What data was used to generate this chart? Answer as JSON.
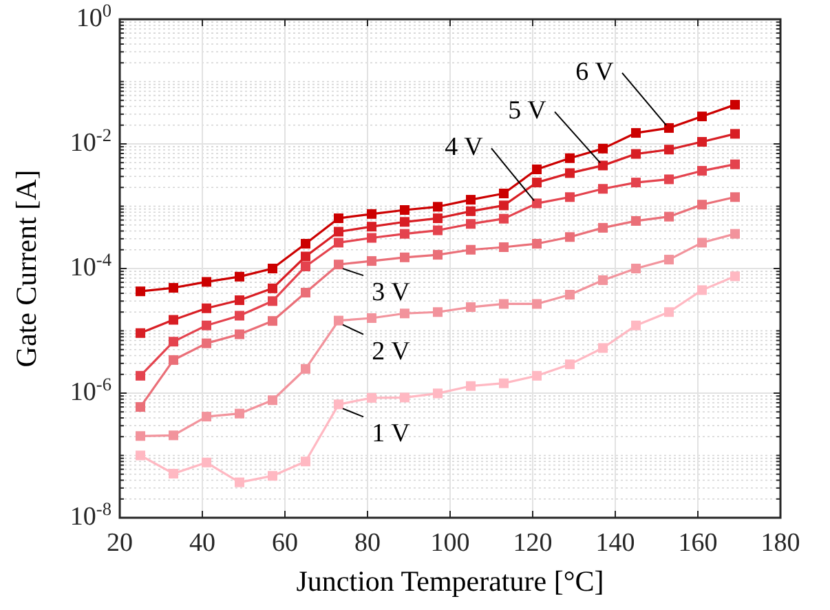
{
  "chart_data": {
    "type": "line",
    "xlabel": "Junction Temperature [°C]",
    "ylabel": "Gate Current [A]",
    "x": [
      25,
      33,
      41,
      49,
      57,
      65,
      73,
      81,
      89,
      97,
      105,
      113,
      121,
      129,
      137,
      145,
      153,
      161,
      169
    ],
    "xlim": [
      20,
      180
    ],
    "xticks": [
      20,
      40,
      60,
      80,
      100,
      120,
      140,
      160,
      180
    ],
    "ylim": [
      1e-08,
      1
    ],
    "log": true,
    "yticks": [
      {
        "value": 1e-08,
        "label": "10$^{-8}$"
      },
      {
        "value": 1e-06,
        "label": "10$^{-6}$"
      },
      {
        "value": 0.0001,
        "label": "10$^{-4}$"
      },
      {
        "value": 0.01,
        "label": "10$^{-2}$"
      },
      {
        "value": 1,
        "label": "10$^{0}$"
      }
    ],
    "grid": true,
    "legend": false,
    "marker": "square",
    "line_style": "solid",
    "series": [
      {
        "color": "#cc0000",
        "values": [
          4.3e-05,
          4.9e-05,
          6.1e-05,
          7.4e-05,
          0.0001,
          0.00025,
          0.00064,
          0.00075,
          0.00087,
          0.00098,
          0.00127,
          0.0016,
          0.0039,
          0.0059,
          0.0084,
          0.015,
          0.018,
          0.0276,
          0.0425
        ]
      },
      {
        "color": "#d81e24",
        "values": [
          9.2e-06,
          1.5e-05,
          2.3e-05,
          3.1e-05,
          4.8e-05,
          0.000156,
          0.00039,
          0.00047,
          0.00056,
          0.00064,
          0.00083,
          0.00103,
          0.0024,
          0.0034,
          0.0045,
          0.0069,
          0.0081,
          0.0108,
          0.0145
        ]
      },
      {
        "color": "#e4434e",
        "values": [
          1.9e-06,
          6.7e-06,
          1.22e-05,
          1.75e-05,
          3e-05,
          0.000108,
          0.00026,
          0.00031,
          0.00036,
          0.00041,
          0.00052,
          0.00063,
          0.00111,
          0.0014,
          0.0019,
          0.0024,
          0.0027,
          0.0037,
          0.0047
        ]
      },
      {
        "color": "#ea6f78",
        "values": [
          6e-07,
          3.4e-06,
          6.3e-06,
          8.8e-06,
          1.44e-05,
          4.1e-05,
          0.000116,
          0.000132,
          0.000151,
          0.000166,
          0.0002,
          0.00022,
          0.00025,
          0.00032,
          0.00045,
          0.00058,
          0.00068,
          0.00106,
          0.0014
        ]
      },
      {
        "color": "#f2939c",
        "values": [
          2.05e-07,
          2.1e-07,
          4.2e-07,
          4.7e-07,
          7.7e-07,
          2.45e-06,
          1.46e-05,
          1.6e-05,
          1.9e-05,
          2e-05,
          2.4e-05,
          2.7e-05,
          2.7e-05,
          3.8e-05,
          6.5e-05,
          0.0001,
          0.000139,
          0.00026,
          0.00036
        ]
      },
      {
        "color": "#ffb8c2",
        "values": [
          1e-07,
          5.1e-08,
          7.7e-08,
          3.7e-08,
          4.7e-08,
          8e-08,
          6.6e-07,
          8.4e-07,
          8.5e-07,
          9.9e-07,
          1.3e-06,
          1.44e-06,
          1.9e-06,
          2.9e-06,
          5.3e-06,
          1.22e-05,
          2e-05,
          4.5e-05,
          7.5e-05
        ]
      }
    ],
    "annotations": [
      {
        "text": "6 V",
        "x": 153,
        "y": 0.018
      },
      {
        "text": "5 V",
        "x": 137,
        "y": 0.0045
      },
      {
        "text": "4 V",
        "x": 121,
        "y": 0.00111
      },
      {
        "text": "3 V",
        "x": 73,
        "y": 0.000116
      },
      {
        "text": "2 V",
        "x": 73,
        "y": 1.46e-05
      },
      {
        "text": "1 V",
        "x": 73,
        "y": 6.6e-07
      }
    ]
  }
}
